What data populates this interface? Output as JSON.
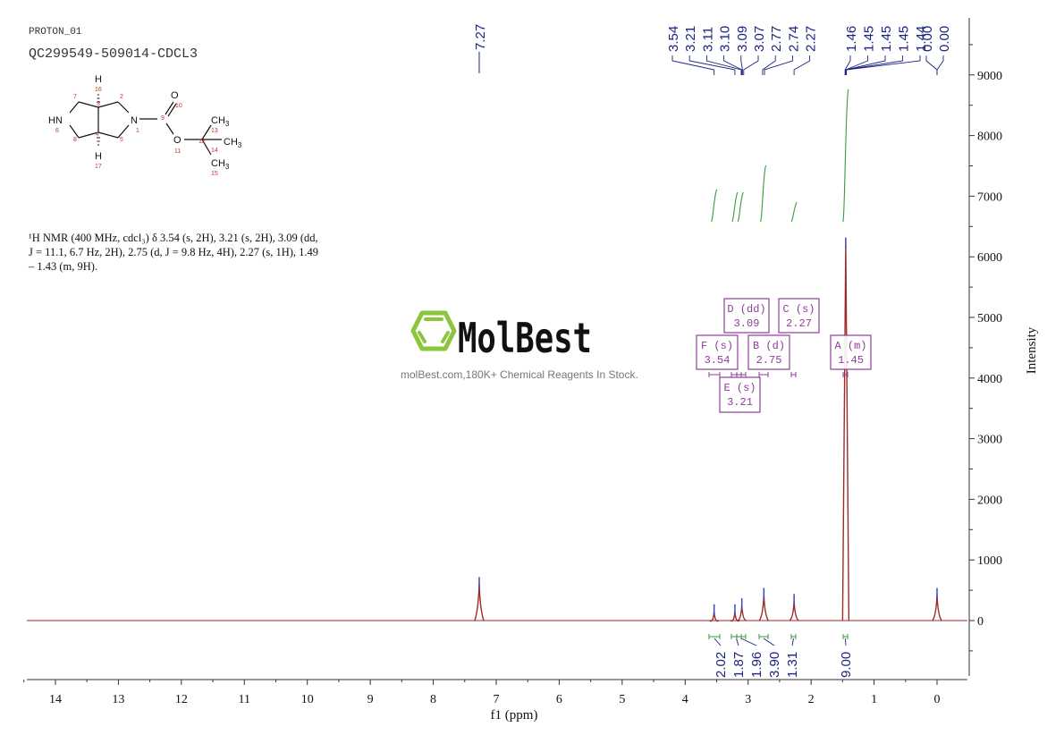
{
  "header": {
    "experiment": "PROTON_01",
    "sample_id": "QC299549-509014-CDCL3"
  },
  "structure": {
    "atoms": [
      "H",
      "16",
      "7",
      "3",
      "2",
      "O",
      "10",
      "HN",
      "6",
      "N",
      "1",
      "9",
      "CH3",
      "13",
      "O",
      "11",
      "12",
      "CH3",
      "14",
      "8",
      "4",
      "5",
      "H",
      "17",
      "CH3",
      "15"
    ]
  },
  "nmr_description": {
    "line1": "¹H NMR (400 MHz, cdcl₃) δ 3.54 (s, 2H), 3.21 (s, 2H), 3.09 (dd,",
    "line2": "J = 11.1, 6.7 Hz, 2H), 2.75 (d, J = 9.8 Hz, 4H), 2.27 (s, 1H), 1.49",
    "line3": "– 1.43 (m, 9H)."
  },
  "watermark": {
    "brand": "MolBest",
    "tagline": "molBest.com,180K+ Chemical Reagents In Stock.",
    "brand_color": "#8cc63f"
  },
  "colors": {
    "spectrum": "#9c2b2b",
    "integral": "#3a9a3a",
    "peak_label": "#1a237e",
    "multiplet_box": "#8e3c9a",
    "axis": "#333333"
  },
  "chart_data": {
    "type": "line",
    "title": "",
    "xlabel": "f1 (ppm)",
    "ylabel": "Intensity",
    "xlim": [
      14.5,
      -0.5
    ],
    "ylim": [
      -1000,
      9800
    ],
    "x_ticks": [
      14,
      13,
      12,
      11,
      10,
      9,
      8,
      7,
      6,
      5,
      4,
      3,
      2,
      1,
      0
    ],
    "y_ticks": [
      0,
      1000,
      2000,
      3000,
      4000,
      5000,
      6000,
      7000,
      8000,
      9000
    ],
    "peak_labels_left": [
      "7.27"
    ],
    "peak_labels": [
      "3.54",
      "3.21",
      "3.11",
      "3.10",
      "3.09",
      "3.07",
      "2.77",
      "2.74",
      "2.27",
      "1.46",
      "1.45",
      "1.45",
      "1.45",
      "1.44",
      "0.00",
      "0.00"
    ],
    "peaks": [
      {
        "ppm": 7.27,
        "intensity": 600
      },
      {
        "ppm": 3.54,
        "intensity": 150
      },
      {
        "ppm": 3.21,
        "intensity": 150
      },
      {
        "ppm": 3.1,
        "intensity": 250
      },
      {
        "ppm": 2.75,
        "intensity": 420
      },
      {
        "ppm": 2.27,
        "intensity": 320
      },
      {
        "ppm": 1.45,
        "intensity": 6200
      },
      {
        "ppm": 0.0,
        "intensity": 420
      }
    ],
    "integrals": [
      {
        "ppm": 3.54,
        "value": "2.02"
      },
      {
        "ppm": 3.21,
        "value": "1.87"
      },
      {
        "ppm": 3.09,
        "value": "1.96"
      },
      {
        "ppm": 2.75,
        "value": "3.90"
      },
      {
        "ppm": 2.27,
        "value": "1.31"
      },
      {
        "ppm": 1.45,
        "value": "9.00"
      }
    ],
    "multiplets": [
      {
        "id": "D",
        "type": "dd",
        "shift": "3.09",
        "label": "D (dd)",
        "value": "3.09"
      },
      {
        "id": "C",
        "type": "s",
        "shift": "2.27",
        "label": "C (s)",
        "value": "2.27"
      },
      {
        "id": "F",
        "type": "s",
        "shift": "3.54",
        "label": "F (s)",
        "value": "3.54"
      },
      {
        "id": "B",
        "type": "d",
        "shift": "2.75",
        "label": "B (d)",
        "value": "2.75"
      },
      {
        "id": "A",
        "type": "m",
        "shift": "1.45",
        "label": "A (m)",
        "value": "1.45"
      },
      {
        "id": "E",
        "type": "s",
        "shift": "3.21",
        "label": "E (s)",
        "value": "3.21"
      }
    ]
  }
}
